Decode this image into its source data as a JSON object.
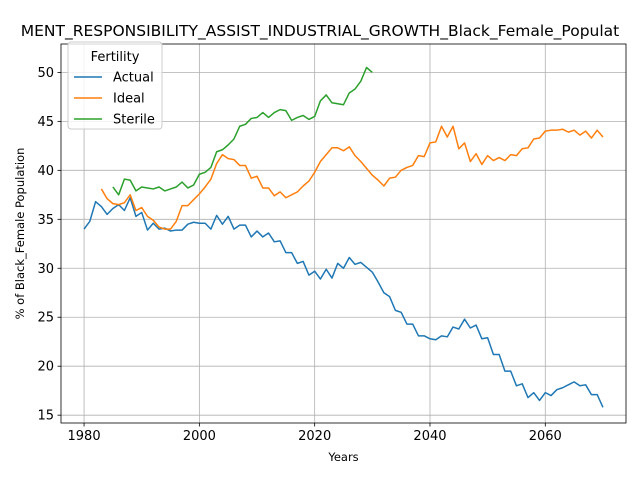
{
  "chart_data": {
    "type": "line",
    "title": "MENT_RESPONSIBILITY_ASSIST_INDUSTRIAL_GROWTH_Black_Female_Populat",
    "xlabel": "Years",
    "ylabel": "% of Black_Female Population",
    "xlim": [
      1976,
      2074
    ],
    "ylim": [
      14.2,
      52.9
    ],
    "xticks": [
      1980,
      2000,
      2020,
      2040,
      2060
    ],
    "yticks": [
      15,
      20,
      25,
      30,
      35,
      40,
      45,
      50
    ],
    "grid": true,
    "legend": {
      "title": "Fertility",
      "placement": "top-left"
    },
    "series": [
      {
        "name": "Actual",
        "color": "#1f77b4",
        "x": [
          1980,
          1981,
          1982,
          1983,
          1984,
          1985,
          1986,
          1987,
          1988,
          1989,
          1990,
          1991,
          1992,
          1993,
          1994,
          1995,
          1996,
          1997,
          1998,
          1999,
          2000,
          2001,
          2002,
          2003,
          2004,
          2005,
          2006,
          2007,
          2008,
          2009,
          2010,
          2011,
          2012,
          2013,
          2014,
          2015,
          2016,
          2017,
          2018,
          2019,
          2020,
          2021,
          2022,
          2023,
          2024,
          2025,
          2026,
          2027,
          2028,
          2029,
          2030,
          2031,
          2032,
          2033,
          2034,
          2035,
          2036,
          2037,
          2038,
          2039,
          2040,
          2041,
          2042,
          2043,
          2044,
          2045,
          2046,
          2047,
          2048,
          2049,
          2050,
          2051,
          2052,
          2053,
          2054,
          2055,
          2056,
          2057,
          2058,
          2059,
          2060,
          2061,
          2062,
          2063,
          2064,
          2065,
          2066,
          2067,
          2068,
          2069,
          2070
        ],
        "values": [
          34.0,
          34.8,
          36.8,
          36.3,
          35.5,
          36.1,
          36.5,
          35.9,
          37.2,
          35.3,
          35.7,
          33.9,
          34.6,
          34.0,
          34.1,
          33.8,
          33.9,
          33.9,
          34.5,
          34.7,
          34.6,
          34.6,
          34.0,
          35.4,
          34.5,
          35.3,
          34.0,
          34.4,
          34.4,
          33.2,
          33.8,
          33.2,
          33.6,
          32.7,
          32.8,
          31.6,
          31.6,
          30.5,
          30.7,
          29.3,
          29.7,
          28.9,
          29.9,
          29.0,
          30.5,
          30.0,
          31.1,
          30.4,
          30.6,
          30.1,
          29.6,
          28.6,
          27.5,
          27.1,
          25.7,
          25.5,
          24.3,
          24.3,
          23.1,
          23.1,
          22.8,
          22.7,
          23.1,
          23.0,
          24.0,
          23.8,
          24.8,
          23.9,
          24.2,
          22.8,
          22.9,
          21.2,
          21.2,
          19.5,
          19.5,
          18.0,
          18.2,
          16.8,
          17.3,
          16.5,
          17.3,
          17.0,
          17.6,
          17.8,
          18.1,
          18.4,
          18.0,
          18.1,
          17.1,
          17.1,
          15.8
        ]
      },
      {
        "name": "Ideal",
        "color": "#ff7f0e",
        "x": [
          1983,
          1984,
          1985,
          1986,
          1987,
          1988,
          1989,
          1990,
          1991,
          1992,
          1993,
          1994,
          1995,
          1996,
          1997,
          1998,
          1999,
          2000,
          2001,
          2002,
          2003,
          2004,
          2005,
          2006,
          2007,
          2008,
          2009,
          2010,
          2011,
          2012,
          2013,
          2014,
          2015,
          2016,
          2017,
          2018,
          2019,
          2020,
          2021,
          2022,
          2023,
          2024,
          2025,
          2026,
          2027,
          2028,
          2029,
          2030,
          2031,
          2032,
          2033,
          2034,
          2035,
          2036,
          2037,
          2038,
          2039,
          2040,
          2041,
          2042,
          2043,
          2044,
          2045,
          2046,
          2047,
          2048,
          2049,
          2050,
          2051,
          2052,
          2053,
          2054,
          2055,
          2056,
          2057,
          2058,
          2059,
          2060,
          2061,
          2062,
          2063,
          2064,
          2065,
          2066,
          2067,
          2068,
          2069,
          2070
        ],
        "values": [
          38.1,
          37.1,
          36.6,
          36.5,
          36.7,
          37.5,
          35.9,
          36.2,
          35.3,
          34.9,
          34.2,
          34.0,
          34.0,
          34.8,
          36.4,
          36.4,
          37.0,
          37.6,
          38.3,
          39.1,
          40.7,
          41.6,
          41.2,
          41.1,
          40.5,
          40.5,
          39.2,
          39.4,
          38.2,
          38.2,
          37.4,
          37.8,
          37.2,
          37.5,
          37.8,
          38.4,
          38.9,
          39.8,
          40.9,
          41.6,
          42.3,
          42.3,
          42.0,
          42.4,
          41.5,
          40.9,
          40.2,
          39.5,
          39.0,
          38.4,
          39.2,
          39.3,
          40.0,
          40.3,
          40.5,
          41.5,
          41.4,
          42.8,
          42.9,
          44.5,
          43.4,
          44.5,
          42.2,
          42.8,
          40.9,
          41.7,
          40.6,
          41.5,
          41.0,
          41.3,
          41.0,
          41.6,
          41.5,
          42.2,
          42.3,
          43.2,
          43.3,
          44.0,
          44.1,
          44.1,
          44.2,
          43.9,
          44.1,
          43.6,
          44.0,
          43.3,
          44.1,
          43.4
        ]
      },
      {
        "name": "Sterile",
        "color": "#2ca02c",
        "x": [
          1985,
          1986,
          1987,
          1988,
          1989,
          1990,
          1991,
          1992,
          1993,
          1994,
          1995,
          1996,
          1997,
          1998,
          1999,
          2000,
          2001,
          2002,
          2003,
          2004,
          2005,
          2006,
          2007,
          2008,
          2009,
          2010,
          2011,
          2012,
          2013,
          2014,
          2015,
          2016,
          2017,
          2018,
          2019,
          2020,
          2021,
          2022,
          2023,
          2024,
          2025,
          2026,
          2027,
          2028,
          2029,
          2030
        ],
        "values": [
          38.3,
          37.5,
          39.1,
          39.0,
          37.9,
          38.3,
          38.2,
          38.1,
          38.3,
          37.9,
          38.1,
          38.3,
          38.8,
          38.2,
          38.5,
          39.6,
          39.8,
          40.3,
          41.9,
          42.1,
          42.6,
          43.2,
          44.5,
          44.7,
          45.3,
          45.4,
          45.9,
          45.4,
          45.9,
          46.2,
          46.1,
          45.1,
          45.4,
          45.6,
          45.2,
          45.5,
          47.1,
          47.7,
          46.9,
          46.8,
          46.7,
          47.9,
          48.3,
          49.1,
          50.5,
          50.0
        ]
      }
    ]
  }
}
